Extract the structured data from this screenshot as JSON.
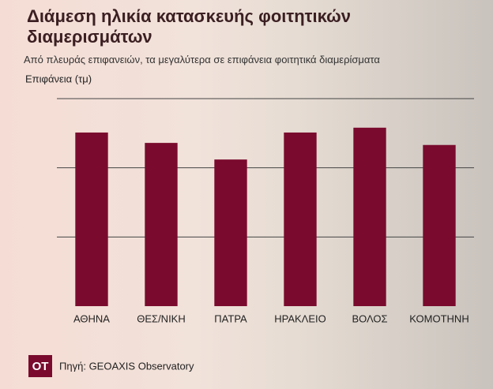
{
  "chart_data": {
    "type": "bar",
    "title": "Διάμεση ηλικία κατασκευής φοιτητικών διαμερισμάτων",
    "subtitle": "Από πλευράς επιφανειών, τα μεγαλύτερα σε επιφάνεια φοιτητικά διαμερίσματα",
    "y_label": "Επιφάνεια (τμ)",
    "categories": [
      "ΑΘΗΝΑ",
      "ΘΕΣ/ΝΙΚΗ",
      "ΠΑΤΡΑ",
      "ΗΡΑΚΛΕΙΟ",
      "ΒΟΛΟΣ",
      "ΚΟΜΟΤΗΝΗ"
    ],
    "values": [
      2.51,
      2.36,
      2.12,
      2.51,
      2.58,
      2.33
    ],
    "color": "#7a0b2e",
    "ylim": [
      0,
      3
    ],
    "yticks": [
      1,
      2,
      3
    ],
    "grid": true,
    "logo": "OT",
    "source": "Πηγή: GEOAXIS Observatory"
  }
}
